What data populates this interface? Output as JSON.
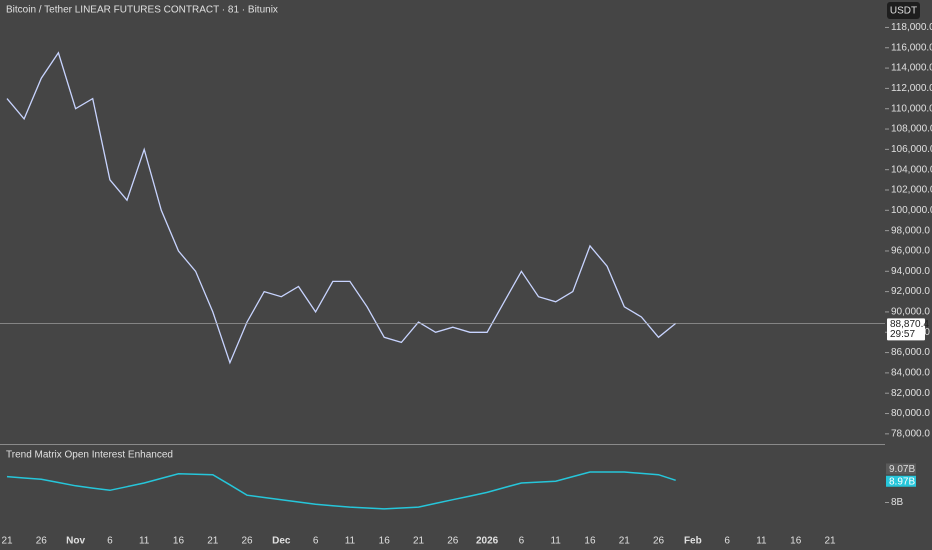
{
  "chart_data": [
    {
      "type": "line",
      "title": "Bitcoin / Tether LINEAR FUTURES CONTRACT · 81 · Bitunix",
      "currency_button": "USDT",
      "color": "#c8d4ff",
      "categories": [
        "21",
        null,
        "26",
        null,
        "Nov",
        null,
        "6",
        null,
        "11",
        null,
        "16",
        null,
        "21",
        null,
        "26",
        null,
        "Dec",
        null,
        "6",
        null,
        "11",
        null,
        "16",
        null,
        "21",
        null,
        "26",
        null,
        "2026",
        null,
        "6",
        null,
        "11",
        null,
        "16",
        null,
        "21",
        null,
        "26",
        null,
        "Feb",
        null,
        "6",
        null,
        "11",
        null,
        "16",
        null,
        "21"
      ],
      "values": [
        111000,
        109000,
        113000,
        115500,
        110000,
        111000,
        103000,
        101000,
        106000,
        100000,
        96000,
        94000,
        90000,
        85000,
        89000,
        92000,
        91500,
        92500,
        90000,
        93000,
        93000,
        90500,
        87500,
        87000,
        89000,
        88000,
        88500,
        88000,
        88000,
        91000,
        94000,
        91500,
        91000,
        92000,
        96500,
        94500,
        90500,
        89500,
        87500,
        88870.4,
        null,
        null,
        null,
        null,
        null,
        null,
        null,
        null,
        null
      ],
      "last_price": 88870.4,
      "last_price_label": "88,870.4",
      "countdown": "29:57",
      "ylim": [
        77100,
        120700
      ],
      "yticks": [
        {
          "value": 78000,
          "label": "78,000.0"
        },
        {
          "value": 80000,
          "label": "80,000.0"
        },
        {
          "value": 82000,
          "label": "82,000.0"
        },
        {
          "value": 84000,
          "label": "84,000.0"
        },
        {
          "value": 86000,
          "label": "86,000.0"
        },
        {
          "value": 88000,
          "label": "88,000.0"
        },
        {
          "value": 90000,
          "label": "90,000.0"
        },
        {
          "value": 92000,
          "label": "92,000.0"
        },
        {
          "value": 94000,
          "label": "94,000.0"
        },
        {
          "value": 96000,
          "label": "96,000.0"
        },
        {
          "value": 98000,
          "label": "98,000.0"
        },
        {
          "value": 100000,
          "label": "100,000.0"
        },
        {
          "value": 102000,
          "label": "102,000.0"
        },
        {
          "value": 104000,
          "label": "104,000.0"
        },
        {
          "value": 106000,
          "label": "106,000.0"
        },
        {
          "value": 108000,
          "label": "108,000.0"
        },
        {
          "value": 110000,
          "label": "110,000.0"
        },
        {
          "value": 112000,
          "label": "112,000.0"
        },
        {
          "value": 114000,
          "label": "114,000.0"
        },
        {
          "value": 116000,
          "label": "116,000.0"
        },
        {
          "value": 118000,
          "label": "118,000.0"
        }
      ]
    },
    {
      "type": "line",
      "title": "Trend Matrix Open Interest Enhanced",
      "color": "#26c6da",
      "values": [
        9.13,
        9.07,
        9.01,
        8.87,
        8.73,
        8.63,
        8.53,
        8.69,
        8.85,
        9.05,
        9.25,
        9.23,
        9.21,
        8.77,
        8.32,
        8.22,
        8.12,
        8.02,
        7.92,
        7.86,
        7.8,
        7.76,
        7.72,
        7.76,
        7.8,
        7.96,
        8.12,
        8.28,
        8.44,
        8.65,
        8.85,
        8.89,
        8.93,
        9.13,
        9.33,
        9.33,
        9.33,
        9.27,
        9.21,
        8.97,
        null,
        null,
        null,
        null,
        null,
        null,
        null,
        null,
        null
      ],
      "ylim": [
        6.67,
        10.42
      ],
      "yticks": [
        {
          "value": 8,
          "label": "8B"
        }
      ],
      "last_values": [
        9.07,
        8.97
      ],
      "last_value_labels": [
        "9.07B",
        "8.97B"
      ],
      "last_value_colors": [
        "#dddddd",
        "#26c6da"
      ]
    }
  ]
}
